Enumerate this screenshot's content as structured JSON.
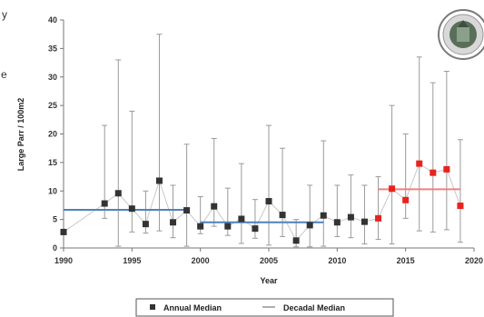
{
  "chart_data": {
    "type": "scatter",
    "title": "",
    "xlabel": "Year",
    "ylabel": "Large Parr / 100m2",
    "xlim": [
      1990,
      2020
    ],
    "ylim": [
      0,
      40
    ],
    "x_ticks": [
      "1990",
      "1995",
      "2000",
      "2005",
      "2010",
      "2015",
      "2020"
    ],
    "y_ticks": [
      "0",
      "5",
      "10",
      "15",
      "20",
      "25",
      "30",
      "35",
      "40"
    ],
    "grid": false,
    "legend_position": "bottom",
    "legend": [
      {
        "label": "Annual Median",
        "marker": "square"
      },
      {
        "label": "Decadal Median",
        "marker": "line"
      }
    ],
    "series": [
      {
        "name": "Annual Median",
        "points": [
          {
            "x": 1990,
            "y": 2.8,
            "lo": 2.8,
            "hi": 2.8,
            "color": "#333333"
          },
          {
            "x": 1993,
            "y": 7.8,
            "lo": 5.2,
            "hi": 21.5,
            "color": "#333333"
          },
          {
            "x": 1994,
            "y": 9.6,
            "lo": 0.3,
            "hi": 33.0,
            "color": "#333333"
          },
          {
            "x": 1995,
            "y": 6.9,
            "lo": 2.8,
            "hi": 24.0,
            "color": "#333333"
          },
          {
            "x": 1996,
            "y": 4.2,
            "lo": 2.6,
            "hi": 10.0,
            "color": "#333333"
          },
          {
            "x": 1997,
            "y": 11.8,
            "lo": 3.0,
            "hi": 37.5,
            "color": "#333333"
          },
          {
            "x": 1998,
            "y": 4.5,
            "lo": 1.8,
            "hi": 11.0,
            "color": "#333333"
          },
          {
            "x": 1999,
            "y": 6.6,
            "lo": 0.3,
            "hi": 18.2,
            "color": "#333333"
          },
          {
            "x": 2000,
            "y": 3.8,
            "lo": 2.5,
            "hi": 9.0,
            "color": "#333333"
          },
          {
            "x": 2001,
            "y": 7.3,
            "lo": 3.8,
            "hi": 19.2,
            "color": "#333333"
          },
          {
            "x": 2002,
            "y": 3.8,
            "lo": 2.2,
            "hi": 10.5,
            "color": "#333333"
          },
          {
            "x": 2003,
            "y": 5.1,
            "lo": 0.8,
            "hi": 14.8,
            "color": "#333333"
          },
          {
            "x": 2004,
            "y": 3.4,
            "lo": 1.7,
            "hi": 8.5,
            "color": "#333333"
          },
          {
            "x": 2005,
            "y": 8.2,
            "lo": 0.5,
            "hi": 21.5,
            "color": "#333333"
          },
          {
            "x": 2006,
            "y": 5.8,
            "lo": 2.0,
            "hi": 17.5,
            "color": "#333333"
          },
          {
            "x": 2007,
            "y": 1.3,
            "lo": 0.2,
            "hi": 5.0,
            "color": "#333333"
          },
          {
            "x": 2008,
            "y": 4.0,
            "lo": 0.2,
            "hi": 11.0,
            "color": "#333333"
          },
          {
            "x": 2009,
            "y": 5.7,
            "lo": 0.3,
            "hi": 18.8,
            "color": "#333333"
          },
          {
            "x": 2010,
            "y": 4.5,
            "lo": 2.0,
            "hi": 11.0,
            "color": "#333333"
          },
          {
            "x": 2011,
            "y": 5.4,
            "lo": 1.8,
            "hi": 12.8,
            "color": "#333333"
          },
          {
            "x": 2012,
            "y": 4.6,
            "lo": 0.7,
            "hi": 11.0,
            "color": "#333333"
          },
          {
            "x": 2013,
            "y": 5.2,
            "lo": 1.5,
            "hi": 12.5,
            "color": "#e8231c"
          },
          {
            "x": 2014,
            "y": 10.4,
            "lo": 0.7,
            "hi": 25.0,
            "color": "#e8231c"
          },
          {
            "x": 2015,
            "y": 8.4,
            "lo": 5.2,
            "hi": 20.0,
            "color": "#e8231c"
          },
          {
            "x": 2016,
            "y": 14.8,
            "lo": 3.0,
            "hi": 33.5,
            "color": "#e8231c"
          },
          {
            "x": 2017,
            "y": 13.2,
            "lo": 2.8,
            "hi": 29.0,
            "color": "#e8231c"
          },
          {
            "x": 2018,
            "y": 13.8,
            "lo": 3.2,
            "hi": 31.0,
            "color": "#e8231c"
          },
          {
            "x": 2019,
            "y": 7.4,
            "lo": 1.0,
            "hi": 19.0,
            "color": "#e8231c"
          }
        ]
      },
      {
        "name": "Decadal Median",
        "segments": [
          {
            "x_start": 1990,
            "x_end": 1999,
            "y": 6.7,
            "color": "#4f81bd"
          },
          {
            "x_start": 2000,
            "x_end": 2009,
            "y": 4.5,
            "color": "#4f81bd"
          },
          {
            "x_start": 2013,
            "x_end": 2019,
            "y": 10.3,
            "color": "#f08080"
          }
        ]
      }
    ]
  },
  "edge_text": {
    "char1": "y",
    "char2": "e"
  }
}
